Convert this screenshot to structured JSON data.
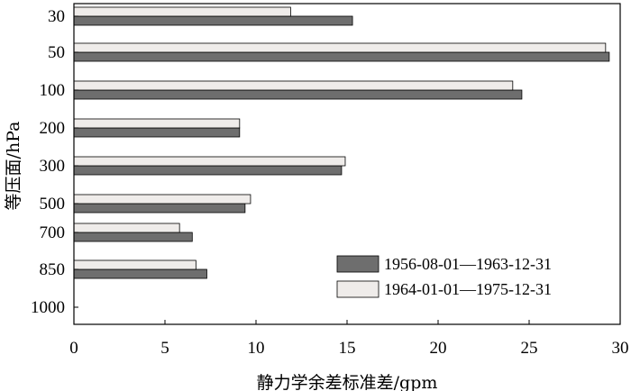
{
  "chart_data": {
    "type": "bar",
    "orientation": "horizontal",
    "categories": [
      "30",
      "50",
      "100",
      "200",
      "300",
      "500",
      "700",
      "850",
      "1000"
    ],
    "series": [
      {
        "name": "1956-08-01—1963-12-31",
        "color": "#6e6e6e",
        "values": [
          15.3,
          29.4,
          24.6,
          9.1,
          14.7,
          9.4,
          6.5,
          7.3,
          null
        ]
      },
      {
        "name": "1964-01-01—1975-12-31",
        "color": "#efecea",
        "values": [
          11.9,
          29.2,
          24.1,
          9.1,
          14.9,
          9.7,
          5.8,
          6.7,
          null
        ]
      }
    ],
    "xlim": [
      0,
      30
    ],
    "x_ticks": [
      "0",
      "5",
      "10",
      "15",
      "20",
      "25",
      "30"
    ],
    "xlabel": "静力学余差标准差/gpm",
    "ylabel": "等压面/hPa",
    "legend_position": "bottom-right",
    "grid": false
  }
}
